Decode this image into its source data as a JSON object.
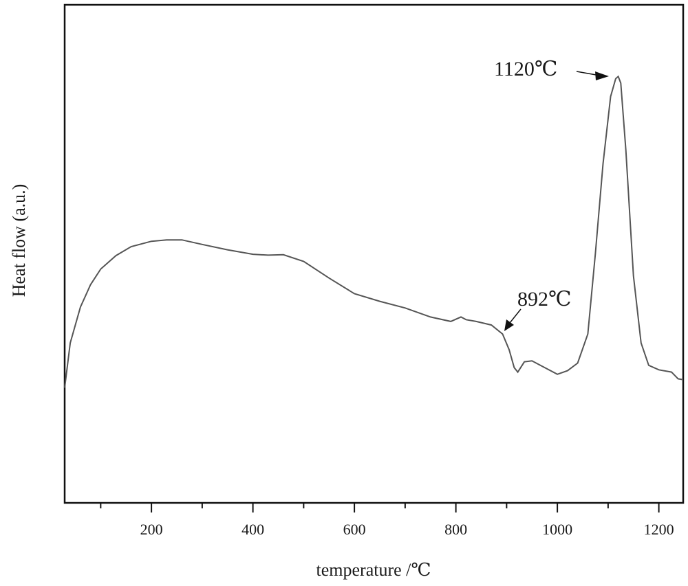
{
  "chart_data": {
    "type": "line",
    "title": "",
    "xlabel": "temperature /℃",
    "ylabel": "Heat flow (a.u.)",
    "xlim": [
      29,
      1248
    ],
    "ylim": [
      0,
      100
    ],
    "x_ticks": [
      200,
      400,
      600,
      800,
      1000,
      1200
    ],
    "x_minor_ticks": [
      100,
      300,
      500,
      700,
      900,
      1100
    ],
    "y_ticks": [],
    "grid": false,
    "legend": null,
    "series": [
      {
        "name": "DSC heat flow",
        "color": "#555555",
        "x": [
          29,
          40,
          60,
          80,
          100,
          130,
          160,
          200,
          230,
          260,
          300,
          350,
          400,
          430,
          460,
          500,
          550,
          600,
          650,
          700,
          750,
          790,
          810,
          820,
          840,
          870,
          892,
          905,
          915,
          922,
          935,
          950,
          970,
          1000,
          1020,
          1040,
          1060,
          1075,
          1090,
          1105,
          1115,
          1120,
          1125,
          1135,
          1150,
          1165,
          1180,
          1200,
          1225,
          1238,
          1248
        ],
        "y": [
          30,
          40,
          48,
          53,
          56.5,
          59.5,
          61.5,
          62.7,
          63,
          63,
          62,
          60.8,
          59.8,
          59.6,
          59.7,
          58.2,
          54.5,
          51,
          49.3,
          47.8,
          45.8,
          44.8,
          45.8,
          45.2,
          44.8,
          44,
          42,
          38.5,
          34.5,
          33.5,
          35.8,
          36,
          34.8,
          33,
          33.8,
          35.5,
          42,
          60,
          80,
          95,
          99,
          99.5,
          98,
          83,
          55,
          40,
          35,
          34,
          33.5,
          32,
          31.8
        ]
      }
    ],
    "annotations": [
      {
        "text": "1120℃",
        "x": 1120,
        "label": "peak"
      },
      {
        "text": "892℃",
        "x": 892,
        "label": "onset"
      }
    ]
  },
  "axes": {
    "xlabel": "temperature /℃",
    "ylabel": "Heat flow (a.u.)",
    "x_tick_labels": [
      "200",
      "400",
      "600",
      "800",
      "1000",
      "1200"
    ]
  },
  "annotations": {
    "peak_label": "1120℃",
    "onset_label": "892℃"
  }
}
